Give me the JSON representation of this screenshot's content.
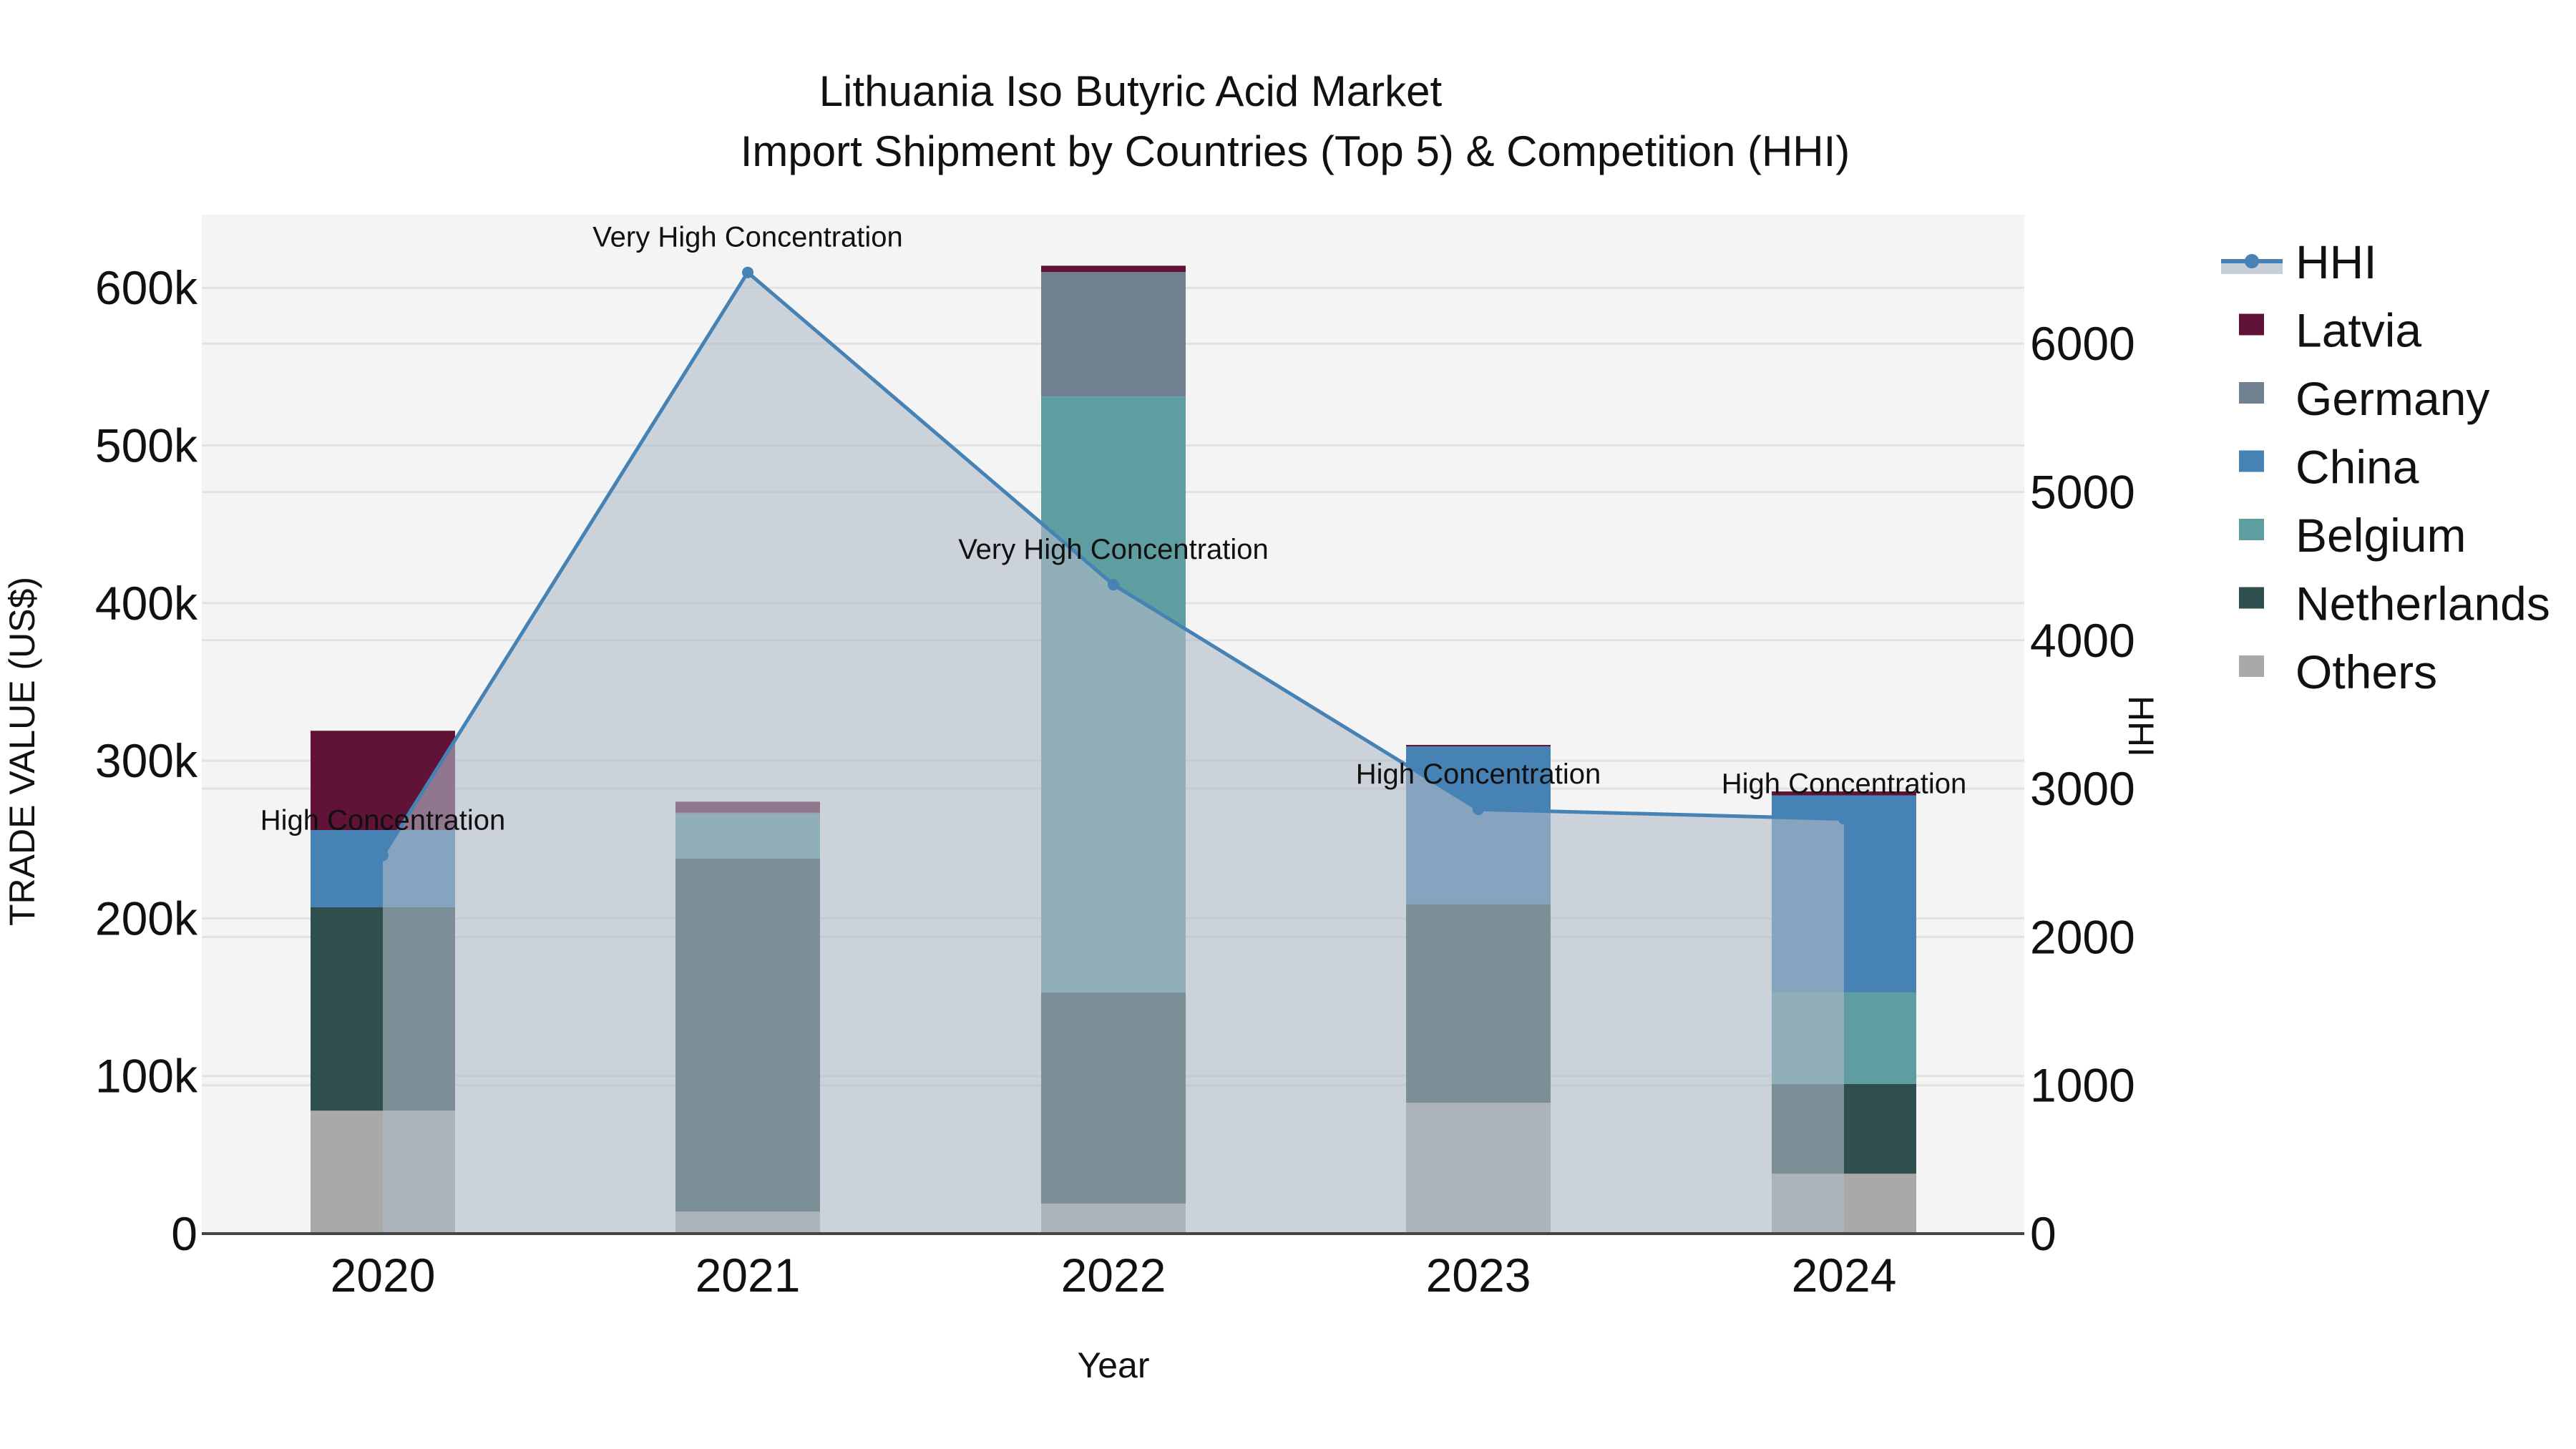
{
  "chart_data": {
    "type": "bar",
    "title": "Lithuania Iso Butyric Acid Market",
    "subtitle": "Import Shipment by Countries (Top 5) & Competition (HHI)",
    "xlabel": "Year",
    "ylabel": "TRADE VALUE (US$)",
    "y2label": "HHI",
    "categories": [
      "2020",
      "2021",
      "2022",
      "2023",
      "2024"
    ],
    "ylim": [
      0,
      645000
    ],
    "y2lim": [
      0,
      6880
    ],
    "yticks": [
      0,
      100000,
      200000,
      300000,
      400000,
      500000,
      600000
    ],
    "ytick_labels": [
      "0",
      "100k",
      "200k",
      "300k",
      "400k",
      "500k",
      "600k"
    ],
    "y2ticks": [
      0,
      1000,
      2000,
      3000,
      4000,
      5000,
      6000
    ],
    "y2tick_labels": [
      "0",
      "1000",
      "2000",
      "3000",
      "4000",
      "5000",
      "6000"
    ],
    "stacked": true,
    "series": [
      {
        "name": "Others",
        "color": "#a9a9a9",
        "values": [
          78000,
          14000,
          19000,
          83000,
          38000
        ]
      },
      {
        "name": "Netherlands",
        "color": "#2f4f4f",
        "values": [
          129000,
          224000,
          134000,
          126000,
          57000
        ]
      },
      {
        "name": "Belgium",
        "color": "#5f9ea0",
        "values": [
          0,
          28000,
          378000,
          0,
          58000
        ]
      },
      {
        "name": "China",
        "color": "#4682b4",
        "values": [
          49000,
          0,
          0,
          100000,
          125000
        ]
      },
      {
        "name": "Germany",
        "color": "#708090",
        "values": [
          0,
          1000,
          79000,
          0,
          0
        ]
      },
      {
        "name": "Latvia",
        "color": "#601336",
        "values": [
          63000,
          7000,
          4000,
          1000,
          2500
        ]
      }
    ],
    "line_series": {
      "name": "HHI",
      "axis": "y2",
      "color": "#4682b4",
      "fill": "rgba(176,186,200,0.6)",
      "values": [
        2550,
        6480,
        4375,
        2860,
        2795
      ],
      "annotations": [
        "High Concentration",
        "Very High Concentration",
        "Very High Concentration",
        "High Concentration",
        "High Concentration"
      ]
    },
    "legend": {
      "position": "right",
      "entries": [
        "HHI",
        "Latvia",
        "Germany",
        "China",
        "Belgium",
        "Netherlands",
        "Others"
      ]
    },
    "grid": true
  },
  "header": {
    "title": "Lithuania Iso Butyric Acid Market",
    "subtitle": "Import Shipment by Countries (Top 5) & Competition (HHI)"
  },
  "axes": {
    "x_title": "Year",
    "y_title": "TRADE VALUE (US$)",
    "y2_title": "HHI"
  }
}
